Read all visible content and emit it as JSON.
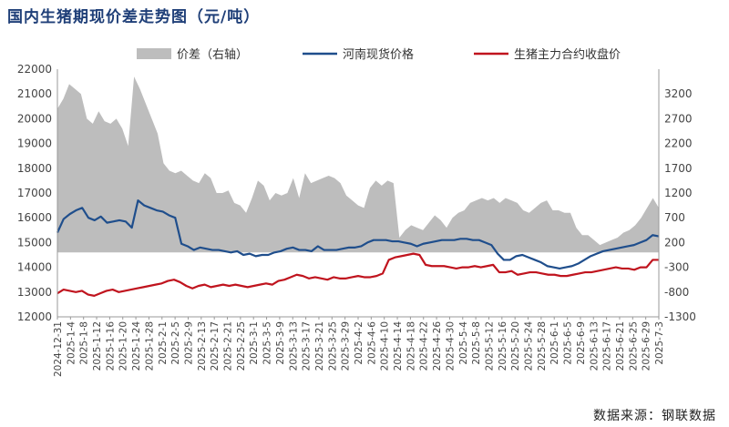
{
  "title": "国内生猪期现价差走势图（元/吨）",
  "source": "数据来源：钢联数据",
  "colors": {
    "spread": "#bdbdbd",
    "spot": "#1f4e8c",
    "futures": "#c0141e",
    "title": "#1f3f78"
  },
  "chart_data": {
    "type": "line",
    "title": "国内生猪期现价差走势图（元/吨）",
    "legend_position": "top",
    "grid": false,
    "y_left": {
      "min": 12000,
      "max": 22000,
      "ticks": [
        12000,
        13000,
        14000,
        15000,
        16000,
        17000,
        18000,
        19000,
        20000,
        21000,
        22000
      ]
    },
    "y_right": {
      "min": -1300,
      "max": 3700,
      "ticks": [
        -1300,
        -800,
        -300,
        200,
        700,
        1200,
        1700,
        2200,
        2700,
        3200
      ]
    },
    "x_ticks": [
      "2024-12-31",
      "2025-1-4",
      "2025-1-8",
      "2025-1-12",
      "2025-1-16",
      "2025-1-20",
      "2025-1-24",
      "2025-1-28",
      "2025-2-1",
      "2025-2-5",
      "2025-2-9",
      "2025-2-13",
      "2025-2-17",
      "2025-2-21",
      "2025-2-25",
      "2025-3-1",
      "2025-3-5",
      "2025-3-9",
      "2025-3-13",
      "2025-3-17",
      "2025-3-21",
      "2025-3-25",
      "2025-3-29",
      "2025-4-2",
      "2025-4-6",
      "2025-4-10",
      "2025-4-14",
      "2025-4-18",
      "2025-4-22",
      "2025-4-26",
      "2025-4-30",
      "2025-5-4",
      "2025-5-8",
      "2025-5-12",
      "2025-5-16",
      "2025-5-20",
      "2025-5-24",
      "2025-5-28",
      "2025-6-1",
      "2025-6-5",
      "2025-6-9",
      "2025-6-13",
      "2025-6-17",
      "2025-6-21",
      "2025-6-25",
      "2025-6-29",
      "2025-7-3"
    ],
    "series": [
      {
        "name": "价差（右轴）",
        "type": "area",
        "axis": "right",
        "values": [
          2900,
          3100,
          3400,
          3300,
          3200,
          2700,
          2600,
          2850,
          2650,
          2600,
          2700,
          2500,
          2150,
          3550,
          3300,
          3000,
          2700,
          2400,
          1800,
          1650,
          1600,
          1650,
          1550,
          1450,
          1400,
          1600,
          1500,
          1200,
          1200,
          1250,
          1000,
          950,
          800,
          1100,
          1450,
          1350,
          1050,
          1200,
          1150,
          1200,
          1500,
          1100,
          1600,
          1400,
          1450,
          1500,
          1550,
          1500,
          1400,
          1150,
          1050,
          950,
          900,
          1300,
          1450,
          1350,
          1450,
          1400,
          300,
          450,
          550,
          500,
          450,
          600,
          750,
          650,
          500,
          700,
          800,
          850,
          1000,
          1050,
          1100,
          1050,
          1100,
          1000,
          1100,
          1050,
          1000,
          850,
          800,
          900,
          1000,
          1050,
          850,
          850,
          800,
          800,
          500,
          350,
          350,
          250,
          150,
          200,
          250,
          300,
          400,
          450,
          550,
          700,
          900,
          1100,
          900
        ]
      },
      {
        "name": "河南现货价格",
        "axis": "left",
        "values": [
          15400,
          15950,
          16150,
          16300,
          16400,
          16000,
          15900,
          16050,
          15800,
          15850,
          15900,
          15850,
          15600,
          16700,
          16500,
          16400,
          16300,
          16250,
          16100,
          16000,
          14950,
          14850,
          14700,
          14800,
          14750,
          14700,
          14700,
          14650,
          14600,
          14650,
          14500,
          14550,
          14450,
          14500,
          14500,
          14600,
          14650,
          14750,
          14800,
          14700,
          14700,
          14650,
          14850,
          14700,
          14700,
          14700,
          14750,
          14800,
          14800,
          14850,
          15000,
          15100,
          15100,
          15100,
          15050,
          15050,
          15000,
          14950,
          14850,
          14950,
          15000,
          15050,
          15100,
          15100,
          15100,
          15150,
          15150,
          15100,
          15100,
          15000,
          14900,
          14550,
          14300,
          14300,
          14450,
          14500,
          14400,
          14300,
          14200,
          14050,
          14000,
          13950,
          14000,
          14050,
          14150,
          14300,
          14450,
          14550,
          14650,
          14700,
          14750,
          14800,
          14850,
          14900,
          15000,
          15100,
          15300,
          15250
        ]
      },
      {
        "name": "生猪主力合约收盘价",
        "axis": "left",
        "values": [
          12950,
          13100,
          13050,
          13000,
          13050,
          12900,
          12850,
          12950,
          13050,
          13100,
          13000,
          13050,
          13100,
          13150,
          13200,
          13250,
          13300,
          13350,
          13450,
          13500,
          13400,
          13250,
          13150,
          13250,
          13300,
          13200,
          13250,
          13300,
          13250,
          13300,
          13250,
          13200,
          13250,
          13300,
          13350,
          13300,
          13450,
          13500,
          13600,
          13700,
          13650,
          13550,
          13600,
          13550,
          13500,
          13600,
          13550,
          13550,
          13600,
          13650,
          13600,
          13600,
          13650,
          13750,
          14300,
          14400,
          14450,
          14500,
          14550,
          14500,
          14100,
          14050,
          14050,
          14050,
          14000,
          13950,
          14000,
          14000,
          14050,
          14000,
          14050,
          14100,
          13800,
          13800,
          13850,
          13700,
          13750,
          13800,
          13800,
          13750,
          13700,
          13700,
          13650,
          13650,
          13700,
          13750,
          13800,
          13800,
          13850,
          13900,
          13950,
          14000,
          13950,
          13950,
          13900,
          14000,
          14000,
          14300,
          14300
        ]
      }
    ]
  }
}
